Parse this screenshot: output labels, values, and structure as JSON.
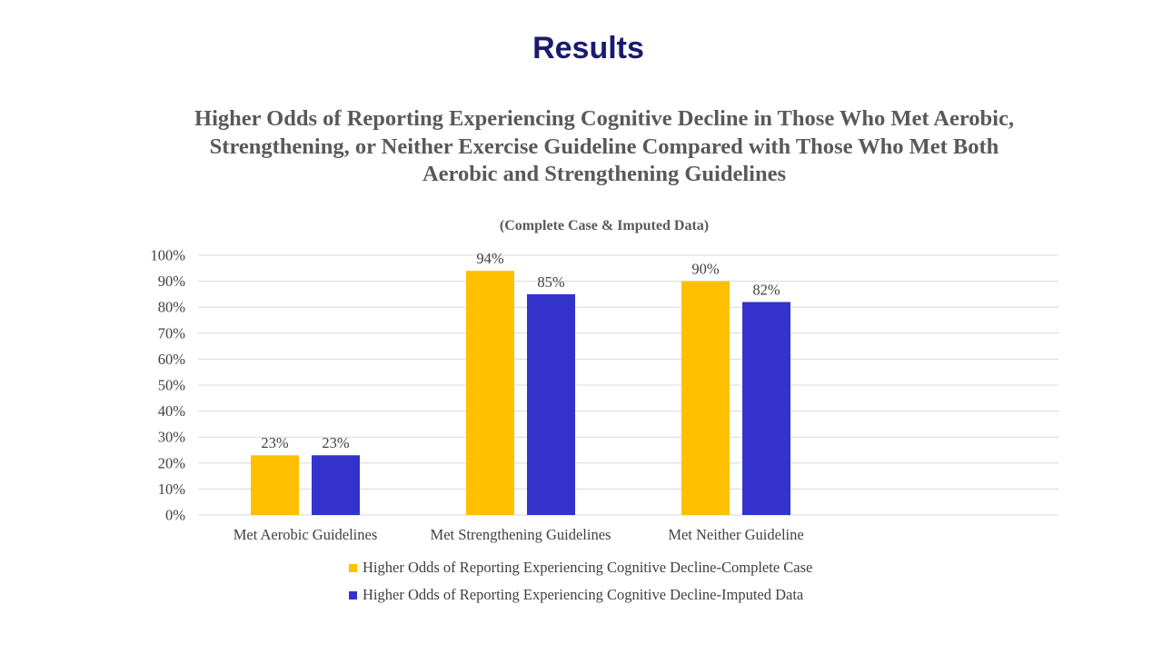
{
  "slide": {
    "title": "Results"
  },
  "colors": {
    "title": "#1a1a6e",
    "series_complete": "#FFC000",
    "series_imputed": "#3333CC",
    "grid": "#d9d9d9",
    "text": "#404040"
  },
  "chart_data": {
    "type": "bar",
    "title": "Higher Odds of Reporting Experiencing Cognitive Decline in Those Who Met Aerobic, Strengthening, or Neither Exercise Guideline Compared with Those Who Met Both Aerobic and Strengthening Guidelines",
    "subtitle": "(Complete Case & Imputed Data)",
    "categories": [
      "Met Aerobic Guidelines",
      "Met Strengthening Guidelines",
      "Met Neither Guideline"
    ],
    "series": [
      {
        "name": "Higher Odds of Reporting Experiencing Cognitive Decline-Complete Case",
        "values": [
          23,
          94,
          90
        ],
        "color": "#FFC000"
      },
      {
        "name": "Higher Odds of Reporting Experiencing Cognitive Decline-Imputed Data",
        "values": [
          23,
          85,
          82
        ],
        "color": "#3333CC"
      }
    ],
    "value_format": "percent",
    "ylim": [
      0,
      100
    ],
    "ytick_step": 10,
    "ytick_labels": [
      "0%",
      "10%",
      "20%",
      "30%",
      "40%",
      "50%",
      "60%",
      "70%",
      "80%",
      "90%",
      "100%"
    ],
    "data_labels": [
      [
        "23%",
        "94%",
        "90%"
      ],
      [
        "23%",
        "85%",
        "82%"
      ]
    ],
    "grid": true,
    "legend_position": "bottom"
  }
}
